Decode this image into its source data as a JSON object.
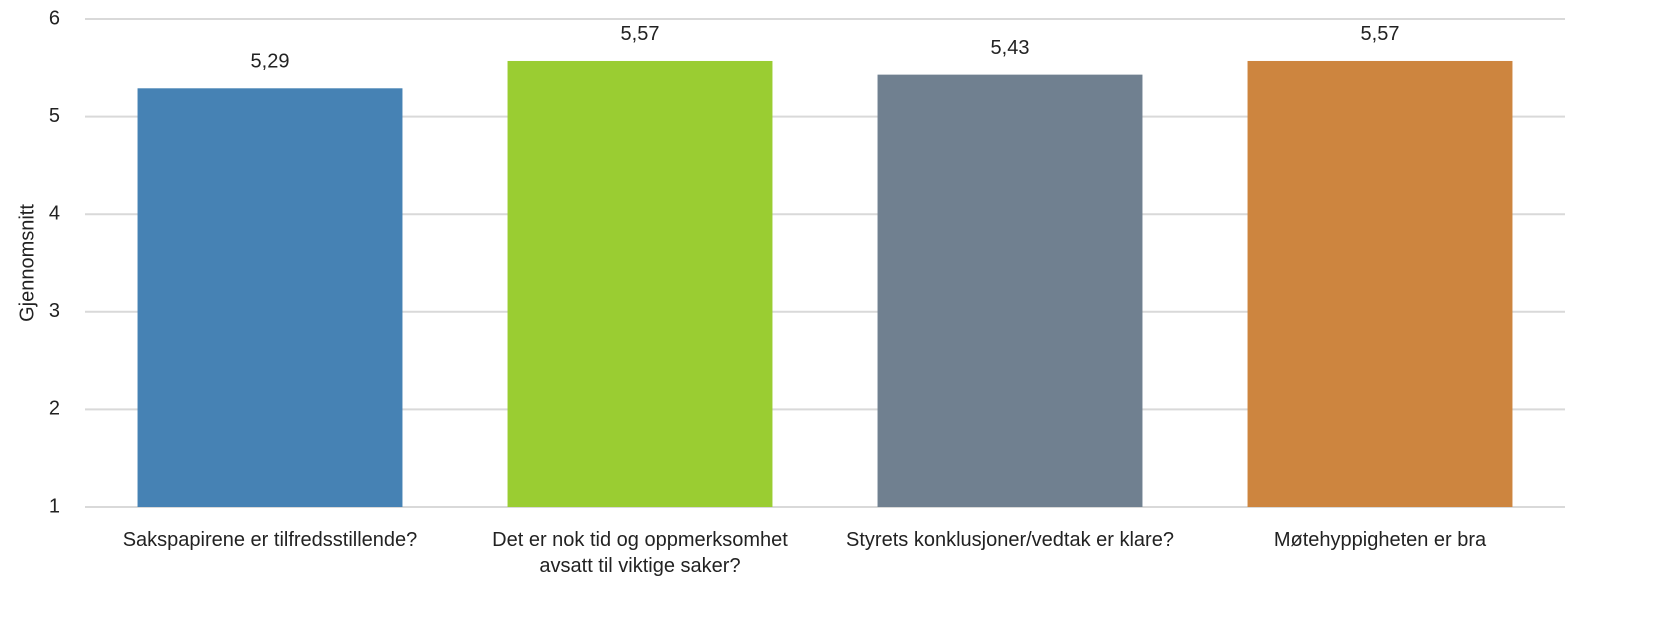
{
  "chart_data": {
    "type": "bar",
    "y_label": "Gjennomsnitt",
    "categories": [
      "Sakspapirene er tilfredsstillende?",
      "Det er nok tid og oppmerksomhet avsatt til viktige saker?",
      "Styrets konklusjoner/vedtak er klare?",
      "Møtehyppigheten er bra"
    ],
    "values": [
      5.29,
      5.57,
      5.43,
      5.57
    ],
    "value_labels": [
      "5,29",
      "5,57",
      "5,43",
      "5,57"
    ],
    "colors": [
      "#4682b4",
      "#9acd32",
      "#708090",
      "#cd853f"
    ],
    "ylim": [
      1,
      6
    ],
    "yticks": [
      1,
      2,
      3,
      4,
      5,
      6
    ],
    "grid": true
  }
}
